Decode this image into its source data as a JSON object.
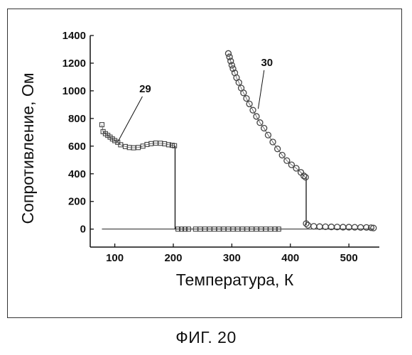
{
  "caption": "ФИГ. 20",
  "chart_data": {
    "type": "scatter",
    "xlabel": "Температура, К",
    "ylabel": "Сопротивление, Ом",
    "xlim": [
      58,
      552
    ],
    "ylim": [
      -130,
      1400
    ],
    "xticks": [
      100,
      200,
      300,
      400,
      500
    ],
    "yticks": [
      0,
      200,
      400,
      600,
      800,
      1000,
      1200,
      1400
    ],
    "grid": false,
    "legend": "none",
    "annotations": [
      {
        "text": "29",
        "x": 152,
        "y": 990,
        "points_to": {
          "x": 105,
          "y": 630
        }
      },
      {
        "text": "30",
        "x": 360,
        "y": 1180,
        "points_to": {
          "x": 345,
          "y": 870
        }
      }
    ],
    "series": [
      {
        "id": "29",
        "marker": "square",
        "marker_color": "#444444",
        "points": [
          [
            78,
            755
          ],
          [
            80,
            705
          ],
          [
            84,
            690
          ],
          [
            88,
            678
          ],
          [
            92,
            665
          ],
          [
            96,
            652
          ],
          [
            100,
            640
          ],
          [
            105,
            628
          ],
          [
            110,
            610
          ],
          [
            118,
            597
          ],
          [
            125,
            590
          ],
          [
            132,
            588
          ],
          [
            140,
            590
          ],
          [
            148,
            600
          ],
          [
            155,
            612
          ],
          [
            162,
            618
          ],
          [
            170,
            622
          ],
          [
            178,
            621
          ],
          [
            185,
            617
          ],
          [
            192,
            610
          ],
          [
            198,
            606
          ],
          [
            202,
            603
          ]
        ],
        "jump": {
          "x": 203,
          "from": 603,
          "to": 0
        },
        "tail": [
          [
            208,
            0
          ],
          [
            214,
            0
          ],
          [
            220,
            0
          ],
          [
            226,
            0
          ],
          [
            238,
            0
          ],
          [
            246,
            0
          ],
          [
            254,
            0
          ],
          [
            262,
            0
          ],
          [
            270,
            0
          ],
          [
            278,
            0
          ],
          [
            286,
            0
          ],
          [
            294,
            0
          ],
          [
            302,
            0
          ],
          [
            310,
            0
          ],
          [
            318,
            0
          ],
          [
            326,
            0
          ],
          [
            334,
            0
          ],
          [
            342,
            0
          ],
          [
            350,
            0
          ],
          [
            358,
            0
          ],
          [
            366,
            0
          ],
          [
            374,
            0
          ],
          [
            380,
            0
          ]
        ]
      },
      {
        "id": "30",
        "marker": "circle",
        "marker_color": "#444444",
        "points": [
          [
            294,
            1270
          ],
          [
            296,
            1245
          ],
          [
            298,
            1215
          ],
          [
            300,
            1185
          ],
          [
            302,
            1160
          ],
          [
            305,
            1130
          ],
          [
            308,
            1095
          ],
          [
            312,
            1060
          ],
          [
            316,
            1020
          ],
          [
            320,
            985
          ],
          [
            325,
            945
          ],
          [
            330,
            905
          ],
          [
            336,
            860
          ],
          [
            342,
            815
          ],
          [
            348,
            770
          ],
          [
            355,
            730
          ],
          [
            362,
            680
          ],
          [
            370,
            630
          ],
          [
            378,
            580
          ],
          [
            386,
            535
          ],
          [
            394,
            495
          ],
          [
            402,
            465
          ],
          [
            410,
            440
          ],
          [
            418,
            410
          ],
          [
            423,
            385
          ],
          [
            426,
            375
          ]
        ],
        "jump": {
          "x": 427,
          "from": 375,
          "to": 30
        },
        "tail": [
          [
            427,
            40
          ],
          [
            430,
            28
          ],
          [
            440,
            20
          ],
          [
            450,
            18
          ],
          [
            460,
            17
          ],
          [
            470,
            16
          ],
          [
            480,
            15
          ],
          [
            490,
            14
          ],
          [
            500,
            14
          ],
          [
            510,
            13
          ],
          [
            520,
            12
          ],
          [
            530,
            12
          ],
          [
            538,
            10
          ],
          [
            542,
            8
          ]
        ]
      }
    ]
  }
}
